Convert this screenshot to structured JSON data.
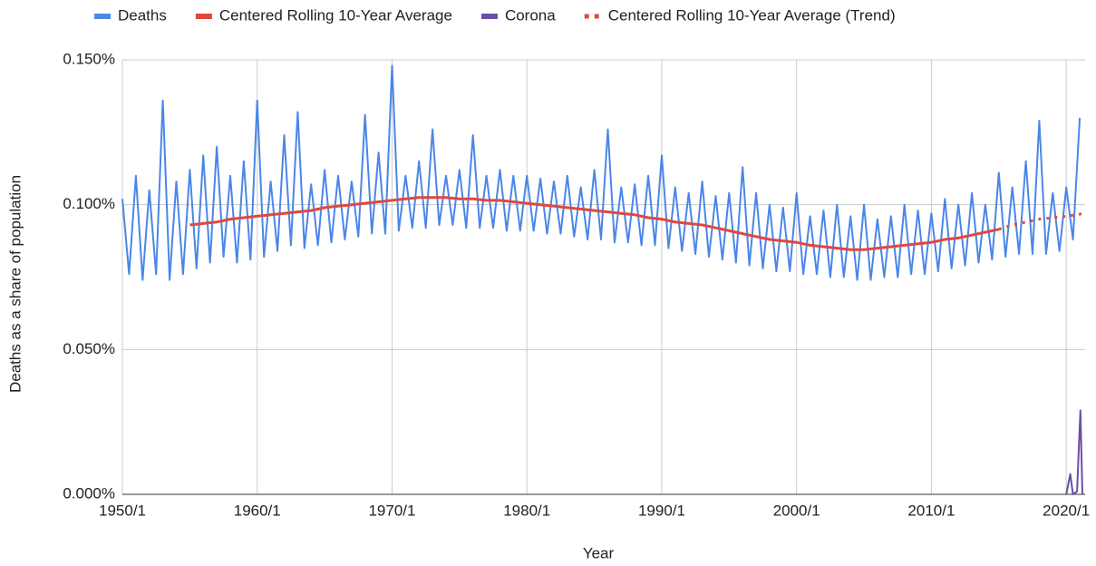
{
  "chart_data": {
    "type": "line",
    "x_label": "Year",
    "y_label": "Deaths as a share of population",
    "legend": "top",
    "grid": true,
    "xlim": [
      1950,
      2021.4
    ],
    "xticks": [
      {
        "value": 1950,
        "label": "1950/1"
      },
      {
        "value": 1960,
        "label": "1960/1"
      },
      {
        "value": 1970,
        "label": "1970/1"
      },
      {
        "value": 1980,
        "label": "1980/1"
      },
      {
        "value": 1990,
        "label": "1990/1"
      },
      {
        "value": 2000,
        "label": "2000/1"
      },
      {
        "value": 2010,
        "label": "2010/1"
      },
      {
        "value": 2020,
        "label": "2020/1"
      }
    ],
    "ylim": [
      0,
      0.15
    ],
    "yticks": [
      {
        "value": 0,
        "label": "0.000%"
      },
      {
        "value": 0.05,
        "label": "0.050%"
      },
      {
        "value": 0.1,
        "label": "0.100%"
      },
      {
        "value": 0.15,
        "label": "0.150%"
      }
    ],
    "series": [
      {
        "name": "Deaths",
        "color": "#4a86e8",
        "style": "solid",
        "x": [
          1950,
          1950.5,
          1951,
          1951.5,
          1952,
          1952.5,
          1953,
          1953.5,
          1954,
          1954.5,
          1955,
          1955.5,
          1956,
          1956.5,
          1957,
          1957.5,
          1958,
          1958.5,
          1959,
          1959.5,
          1960,
          1960.5,
          1961,
          1961.5,
          1962,
          1962.5,
          1963,
          1963.5,
          1964,
          1964.5,
          1965,
          1965.5,
          1966,
          1966.5,
          1967,
          1967.5,
          1968,
          1968.5,
          1969,
          1969.5,
          1970,
          1970.5,
          1971,
          1971.5,
          1972,
          1972.5,
          1973,
          1973.5,
          1974,
          1974.5,
          1975,
          1975.5,
          1976,
          1976.5,
          1977,
          1977.5,
          1978,
          1978.5,
          1979,
          1979.5,
          1980,
          1980.5,
          1981,
          1981.5,
          1982,
          1982.5,
          1983,
          1983.5,
          1984,
          1984.5,
          1985,
          1985.5,
          1986,
          1986.5,
          1987,
          1987.5,
          1988,
          1988.5,
          1989,
          1989.5,
          1990,
          1990.5,
          1991,
          1991.5,
          1992,
          1992.5,
          1993,
          1993.5,
          1994,
          1994.5,
          1995,
          1995.5,
          1996,
          1996.5,
          1997,
          1997.5,
          1998,
          1998.5,
          1999,
          1999.5,
          2000,
          2000.5,
          2001,
          2001.5,
          2002,
          2002.5,
          2003,
          2003.5,
          2004,
          2004.5,
          2005,
          2005.5,
          2006,
          2006.5,
          2007,
          2007.5,
          2008,
          2008.5,
          2009,
          2009.5,
          2010,
          2010.5,
          2011,
          2011.5,
          2012,
          2012.5,
          2013,
          2013.5,
          2014,
          2014.5,
          2015,
          2015.5,
          2016,
          2016.5,
          2017,
          2017.5,
          2018,
          2018.5,
          2019,
          2019.5,
          2020,
          2020.5,
          2021
        ],
        "values": [
          0.102,
          0.076,
          0.11,
          0.074,
          0.105,
          0.076,
          0.136,
          0.074,
          0.108,
          0.076,
          0.112,
          0.078,
          0.117,
          0.08,
          0.12,
          0.082,
          0.11,
          0.08,
          0.115,
          0.081,
          0.136,
          0.082,
          0.108,
          0.084,
          0.124,
          0.086,
          0.132,
          0.085,
          0.107,
          0.086,
          0.112,
          0.087,
          0.11,
          0.088,
          0.108,
          0.089,
          0.131,
          0.09,
          0.118,
          0.09,
          0.148,
          0.091,
          0.11,
          0.092,
          0.115,
          0.092,
          0.126,
          0.093,
          0.11,
          0.093,
          0.112,
          0.092,
          0.124,
          0.092,
          0.11,
          0.092,
          0.112,
          0.091,
          0.11,
          0.091,
          0.11,
          0.091,
          0.109,
          0.09,
          0.108,
          0.09,
          0.11,
          0.089,
          0.106,
          0.088,
          0.112,
          0.088,
          0.126,
          0.087,
          0.106,
          0.087,
          0.107,
          0.086,
          0.11,
          0.086,
          0.117,
          0.085,
          0.106,
          0.084,
          0.104,
          0.083,
          0.108,
          0.082,
          0.103,
          0.081,
          0.104,
          0.08,
          0.113,
          0.079,
          0.104,
          0.078,
          0.1,
          0.077,
          0.099,
          0.077,
          0.104,
          0.076,
          0.096,
          0.076,
          0.098,
          0.075,
          0.1,
          0.075,
          0.096,
          0.074,
          0.1,
          0.074,
          0.095,
          0.075,
          0.096,
          0.075,
          0.1,
          0.076,
          0.098,
          0.076,
          0.097,
          0.077,
          0.102,
          0.078,
          0.1,
          0.079,
          0.104,
          0.08,
          0.1,
          0.081,
          0.111,
          0.082,
          0.106,
          0.083,
          0.115,
          0.083,
          0.129,
          0.083,
          0.104,
          0.084,
          0.106,
          0.088,
          0.13
        ]
      },
      {
        "name": "Centered Rolling 10-Year Average",
        "color": "#e0483e",
        "style": "solid",
        "x": [
          1955,
          1956,
          1957,
          1958,
          1959,
          1960,
          1961,
          1962,
          1963,
          1964,
          1965,
          1966,
          1967,
          1968,
          1969,
          1970,
          1971,
          1972,
          1973,
          1974,
          1975,
          1976,
          1977,
          1978,
          1979,
          1980,
          1981,
          1982,
          1983,
          1984,
          1985,
          1986,
          1987,
          1988,
          1989,
          1990,
          1991,
          1992,
          1993,
          1994,
          1995,
          1996,
          1997,
          1998,
          1999,
          2000,
          2001,
          2002,
          2003,
          2004,
          2005,
          2006,
          2007,
          2008,
          2009,
          2010,
          2011,
          2012,
          2013,
          2014,
          2015
        ],
        "values": [
          0.093,
          0.0935,
          0.094,
          0.095,
          0.0955,
          0.096,
          0.0965,
          0.097,
          0.0975,
          0.098,
          0.099,
          0.0995,
          0.1,
          0.1005,
          0.101,
          0.1015,
          0.102,
          0.1025,
          0.1025,
          0.1025,
          0.102,
          0.102,
          0.1015,
          0.1015,
          0.101,
          0.1005,
          0.1,
          0.0995,
          0.099,
          0.0985,
          0.098,
          0.0975,
          0.097,
          0.0965,
          0.0955,
          0.095,
          0.094,
          0.0935,
          0.093,
          0.092,
          0.091,
          0.09,
          0.089,
          0.088,
          0.0875,
          0.087,
          0.086,
          0.0855,
          0.085,
          0.0845,
          0.0845,
          0.085,
          0.0855,
          0.086,
          0.0865,
          0.087,
          0.088,
          0.0885,
          0.0895,
          0.0905,
          0.0915
        ]
      },
      {
        "name": "Corona",
        "color": "#6a4fa5",
        "style": "solid",
        "x": [
          2020,
          2020.3,
          2020.5,
          2020.8,
          2021.05,
          2021.2
        ],
        "values": [
          0,
          0.007,
          0,
          0.001,
          0.029,
          0
        ]
      },
      {
        "name": "Centered Rolling 10-Year Average (Trend)",
        "color": "#e0483e",
        "style": "dotted",
        "x": [
          2015,
          2016,
          2017,
          2018,
          2019,
          2020,
          2021.4
        ],
        "values": [
          0.0915,
          0.093,
          0.094,
          0.095,
          0.0955,
          0.096,
          0.097
        ]
      }
    ]
  }
}
